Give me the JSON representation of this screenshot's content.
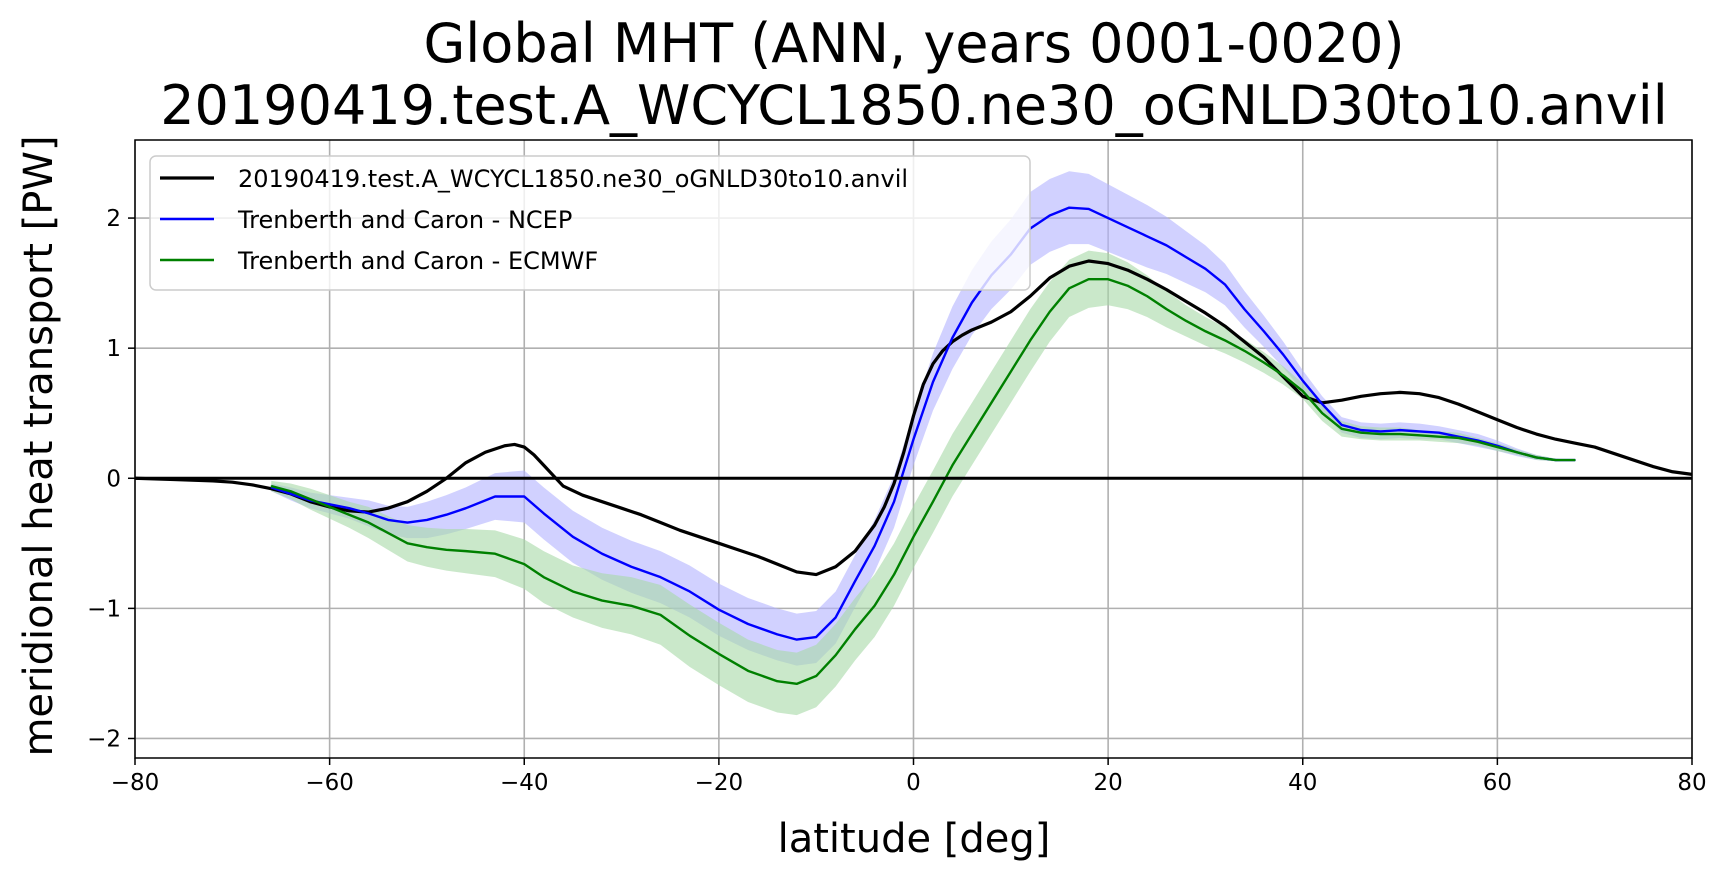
{
  "chart_data": {
    "type": "line",
    "title": "Global MHT (ANN, years 0001-0020)",
    "subtitle": "20190419.test.A_WCYCL1850.ne30_oGNLD30to10.anvil",
    "xlabel": "latitude [deg]",
    "ylabel": "meridional heat transport [PW]",
    "xlim": [
      -80,
      80
    ],
    "ylim": [
      -2.15,
      2.6
    ],
    "xticks": [
      -80,
      -60,
      -40,
      -20,
      0,
      20,
      40,
      60,
      80
    ],
    "xtick_labels": [
      "−80",
      "−60",
      "−40",
      "−20",
      "0",
      "20",
      "40",
      "60",
      "80"
    ],
    "yticks": [
      -2,
      -1,
      0,
      1,
      2
    ],
    "ytick_labels": [
      "−2",
      "−1",
      "0",
      "1",
      "2"
    ],
    "grid": true,
    "legend_position": "top-left",
    "zero_line": true,
    "series": [
      {
        "name": "20190419.test.A_WCYCL1850.ne30_oGNLD30to10.anvil",
        "color": "#000000",
        "x": [
          -80,
          -76,
          -72,
          -70,
          -68,
          -66,
          -64,
          -62,
          -60,
          -58,
          -56,
          -54,
          -52,
          -50,
          -48,
          -46,
          -44,
          -42,
          -41,
          -40,
          -39,
          -38,
          -37,
          -36,
          -34,
          -32,
          -30,
          -28,
          -26,
          -24,
          -22,
          -20,
          -18,
          -16,
          -14,
          -12,
          -10,
          -8,
          -6,
          -4,
          -3,
          -2,
          -1,
          0,
          1,
          2,
          3,
          4,
          5,
          6,
          8,
          10,
          12,
          14,
          16,
          18,
          20,
          22,
          24,
          26,
          28,
          30,
          32,
          34,
          36,
          38,
          40,
          42,
          44,
          46,
          48,
          50,
          52,
          54,
          56,
          58,
          60,
          62,
          64,
          66,
          68,
          70,
          72,
          74,
          76,
          78,
          80
        ],
        "values": [
          0,
          -0.01,
          -0.02,
          -0.03,
          -0.05,
          -0.08,
          -0.12,
          -0.18,
          -0.22,
          -0.25,
          -0.26,
          -0.23,
          -0.18,
          -0.1,
          0.0,
          0.12,
          0.2,
          0.25,
          0.26,
          0.24,
          0.18,
          0.1,
          0.02,
          -0.06,
          -0.13,
          -0.18,
          -0.23,
          -0.28,
          -0.34,
          -0.4,
          -0.45,
          -0.5,
          -0.55,
          -0.6,
          -0.66,
          -0.72,
          -0.74,
          -0.68,
          -0.56,
          -0.36,
          -0.22,
          -0.04,
          0.2,
          0.48,
          0.72,
          0.88,
          0.98,
          1.05,
          1.1,
          1.14,
          1.2,
          1.28,
          1.4,
          1.54,
          1.63,
          1.67,
          1.65,
          1.6,
          1.53,
          1.45,
          1.36,
          1.27,
          1.17,
          1.05,
          0.93,
          0.78,
          0.63,
          0.58,
          0.6,
          0.63,
          0.65,
          0.66,
          0.65,
          0.62,
          0.57,
          0.51,
          0.45,
          0.39,
          0.34,
          0.3,
          0.27,
          0.24,
          0.19,
          0.14,
          0.09,
          0.05,
          0.03
        ]
      },
      {
        "name": "Trenberth and Caron - NCEP",
        "color": "#0000ff",
        "band_color": "#b3b3ff",
        "x": [
          -66,
          -64,
          -62,
          -60,
          -58,
          -56,
          -54,
          -52,
          -50,
          -48,
          -46,
          -43,
          -40,
          -38,
          -35,
          -32,
          -29,
          -26,
          -23,
          -20,
          -17,
          -14,
          -12,
          -10,
          -8,
          -6,
          -4,
          -2,
          0,
          2,
          4,
          6,
          8,
          10,
          12,
          14,
          16,
          18,
          20,
          22,
          24,
          26,
          28,
          30,
          32,
          34,
          36,
          38,
          40,
          42,
          44,
          46,
          48,
          50,
          52,
          54,
          56,
          58,
          60,
          62,
          64,
          66,
          68
        ],
        "values": [
          -0.07,
          -0.12,
          -0.17,
          -0.2,
          -0.23,
          -0.27,
          -0.32,
          -0.34,
          -0.32,
          -0.28,
          -0.23,
          -0.14,
          -0.14,
          -0.27,
          -0.45,
          -0.58,
          -0.68,
          -0.76,
          -0.87,
          -1.01,
          -1.12,
          -1.2,
          -1.24,
          -1.22,
          -1.07,
          -0.79,
          -0.52,
          -0.18,
          0.3,
          0.74,
          1.08,
          1.35,
          1.56,
          1.72,
          1.92,
          2.02,
          2.08,
          2.07,
          2.0,
          1.93,
          1.86,
          1.79,
          1.7,
          1.61,
          1.49,
          1.3,
          1.13,
          0.95,
          0.75,
          0.57,
          0.41,
          0.37,
          0.36,
          0.37,
          0.36,
          0.35,
          0.32,
          0.29,
          0.25,
          0.2,
          0.16,
          0.14,
          0.14
        ],
        "band_halfwidth": [
          0.03,
          0.05,
          0.06,
          0.07,
          0.08,
          0.1,
          0.11,
          0.12,
          0.14,
          0.15,
          0.16,
          0.18,
          0.2,
          0.2,
          0.2,
          0.2,
          0.2,
          0.2,
          0.2,
          0.2,
          0.2,
          0.2,
          0.2,
          0.2,
          0.2,
          0.2,
          0.2,
          0.2,
          0.2,
          0.22,
          0.24,
          0.25,
          0.26,
          0.27,
          0.28,
          0.28,
          0.28,
          0.27,
          0.26,
          0.25,
          0.24,
          0.22,
          0.2,
          0.18,
          0.16,
          0.14,
          0.12,
          0.1,
          0.08,
          0.06,
          0.06,
          0.06,
          0.06,
          0.06,
          0.06,
          0.05,
          0.05,
          0.05,
          0.04,
          0.03,
          0.02,
          0.01,
          0.0
        ]
      },
      {
        "name": "Trenberth and Caron - ECMWF",
        "color": "#008000",
        "band_color": "#a6d9a6",
        "x": [
          -66,
          -64,
          -62,
          -60,
          -58,
          -56,
          -54,
          -52,
          -50,
          -48,
          -46,
          -43,
          -40,
          -38,
          -35,
          -32,
          -29,
          -26,
          -23,
          -20,
          -17,
          -14,
          -12,
          -10,
          -8,
          -6,
          -4,
          -2,
          0,
          2,
          4,
          6,
          8,
          10,
          12,
          14,
          16,
          18,
          20,
          22,
          24,
          26,
          28,
          30,
          32,
          34,
          36,
          38,
          40,
          42,
          44,
          46,
          48,
          50,
          52,
          54,
          56,
          58,
          60,
          62,
          64,
          66,
          68
        ],
        "values": [
          -0.06,
          -0.1,
          -0.16,
          -0.22,
          -0.28,
          -0.34,
          -0.42,
          -0.5,
          -0.53,
          -0.55,
          -0.56,
          -0.58,
          -0.66,
          -0.76,
          -0.87,
          -0.94,
          -0.98,
          -1.05,
          -1.21,
          -1.35,
          -1.48,
          -1.56,
          -1.58,
          -1.52,
          -1.36,
          -1.16,
          -0.98,
          -0.74,
          -0.45,
          -0.18,
          0.1,
          0.34,
          0.58,
          0.82,
          1.06,
          1.28,
          1.46,
          1.53,
          1.53,
          1.48,
          1.4,
          1.3,
          1.21,
          1.13,
          1.06,
          0.98,
          0.89,
          0.79,
          0.67,
          0.5,
          0.38,
          0.35,
          0.34,
          0.34,
          0.33,
          0.32,
          0.31,
          0.28,
          0.24,
          0.2,
          0.16,
          0.14,
          0.14
        ],
        "band_halfwidth": [
          0.04,
          0.06,
          0.08,
          0.09,
          0.1,
          0.12,
          0.13,
          0.14,
          0.15,
          0.16,
          0.17,
          0.18,
          0.19,
          0.2,
          0.2,
          0.21,
          0.22,
          0.23,
          0.24,
          0.24,
          0.24,
          0.24,
          0.24,
          0.24,
          0.24,
          0.24,
          0.24,
          0.24,
          0.24,
          0.24,
          0.24,
          0.24,
          0.24,
          0.24,
          0.24,
          0.23,
          0.22,
          0.22,
          0.2,
          0.18,
          0.16,
          0.14,
          0.12,
          0.11,
          0.1,
          0.09,
          0.08,
          0.07,
          0.06,
          0.06,
          0.06,
          0.05,
          0.05,
          0.05,
          0.04,
          0.04,
          0.04,
          0.03,
          0.03,
          0.02,
          0.02,
          0.01,
          0.0
        ]
      }
    ]
  }
}
